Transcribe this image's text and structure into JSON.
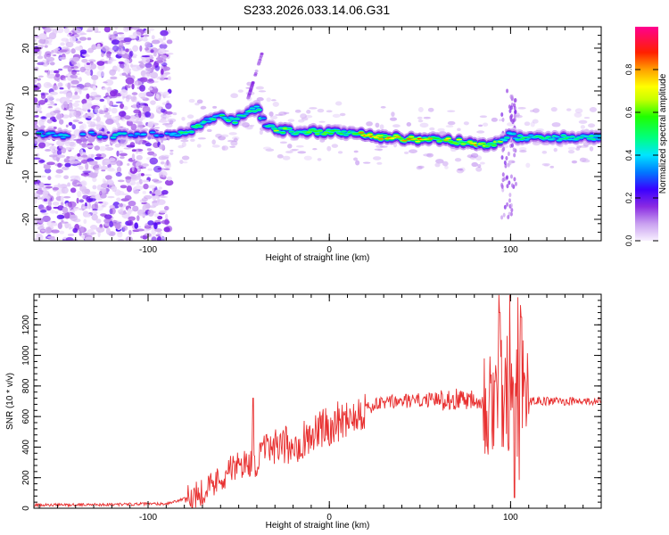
{
  "title": "S233.2026.033.14.06.G31",
  "chart_data": [
    {
      "type": "heatmap",
      "name": "spectrogram",
      "xlabel": "Height of straight line (km)",
      "ylabel": "Frequency (Hz)",
      "xlim": [
        -163,
        150
      ],
      "ylim": [
        -25,
        25
      ],
      "xticks": [
        -100,
        0,
        100
      ],
      "yticks": [
        -20,
        -10,
        0,
        10,
        20
      ],
      "colorbar": {
        "label": "Normalized spectral amplitude",
        "range": [
          0.0,
          1.0
        ],
        "ticks": [
          0.0,
          0.2,
          0.4,
          0.6,
          0.8
        ],
        "tick_labels": [
          "0.0",
          "0.2",
          "0.4",
          "0.6",
          "0.8"
        ]
      },
      "ridge": [
        [
          -155,
          0
        ],
        [
          -145,
          -0.5
        ],
        [
          -135,
          0
        ],
        [
          -125,
          -0.5
        ],
        [
          -110,
          0
        ],
        [
          -100,
          0
        ],
        [
          -90,
          0
        ],
        [
          -80,
          0
        ],
        [
          -72,
          2
        ],
        [
          -62,
          4
        ],
        [
          -52,
          3
        ],
        [
          -45,
          5
        ],
        [
          -40,
          6
        ],
        [
          -35,
          2
        ],
        [
          -30,
          1
        ],
        [
          -20,
          0.5
        ],
        [
          -10,
          0.5
        ],
        [
          0,
          0.5
        ],
        [
          10,
          0
        ],
        [
          20,
          -0.5
        ],
        [
          40,
          -1
        ],
        [
          60,
          -1.5
        ],
        [
          80,
          -2
        ],
        [
          90,
          -2.5
        ],
        [
          95,
          -2
        ],
        [
          100,
          0
        ],
        [
          105,
          -1
        ],
        [
          110,
          -1
        ],
        [
          130,
          -1
        ],
        [
          150,
          -1
        ]
      ]
    },
    {
      "type": "line",
      "name": "snr",
      "xlabel": "Height of straight line (km)",
      "ylabel": "SNR (10 * v/v)",
      "xlim": [
        -163,
        150
      ],
      "ylim": [
        0,
        1400
      ],
      "xticks": [
        -100,
        0,
        100
      ],
      "yticks": [
        0,
        200,
        400,
        600,
        800,
        1000,
        1200
      ],
      "color": "#e83030",
      "trend": [
        [
          -163,
          20
        ],
        [
          -120,
          25
        ],
        [
          -90,
          30
        ],
        [
          -80,
          60
        ],
        [
          -75,
          80
        ],
        [
          -65,
          150
        ],
        [
          -55,
          250
        ],
        [
          -45,
          300
        ],
        [
          -40,
          300
        ],
        [
          -35,
          400
        ],
        [
          -30,
          380
        ],
        [
          -20,
          420
        ],
        [
          -10,
          480
        ],
        [
          0,
          540
        ],
        [
          10,
          600
        ],
        [
          20,
          650
        ],
        [
          30,
          690
        ],
        [
          40,
          700
        ],
        [
          60,
          710
        ],
        [
          80,
          720
        ],
        [
          90,
          720
        ],
        [
          100,
          700
        ],
        [
          110,
          700
        ],
        [
          130,
          700
        ],
        [
          150,
          700
        ]
      ],
      "peaks": [
        {
          "x": -42,
          "y": 720
        },
        {
          "x": 94,
          "y": 1280
        },
        {
          "x": 104,
          "y": 1380
        },
        {
          "x": 106,
          "y": 1250
        },
        {
          "x": 102,
          "y": 70
        }
      ]
    }
  ]
}
